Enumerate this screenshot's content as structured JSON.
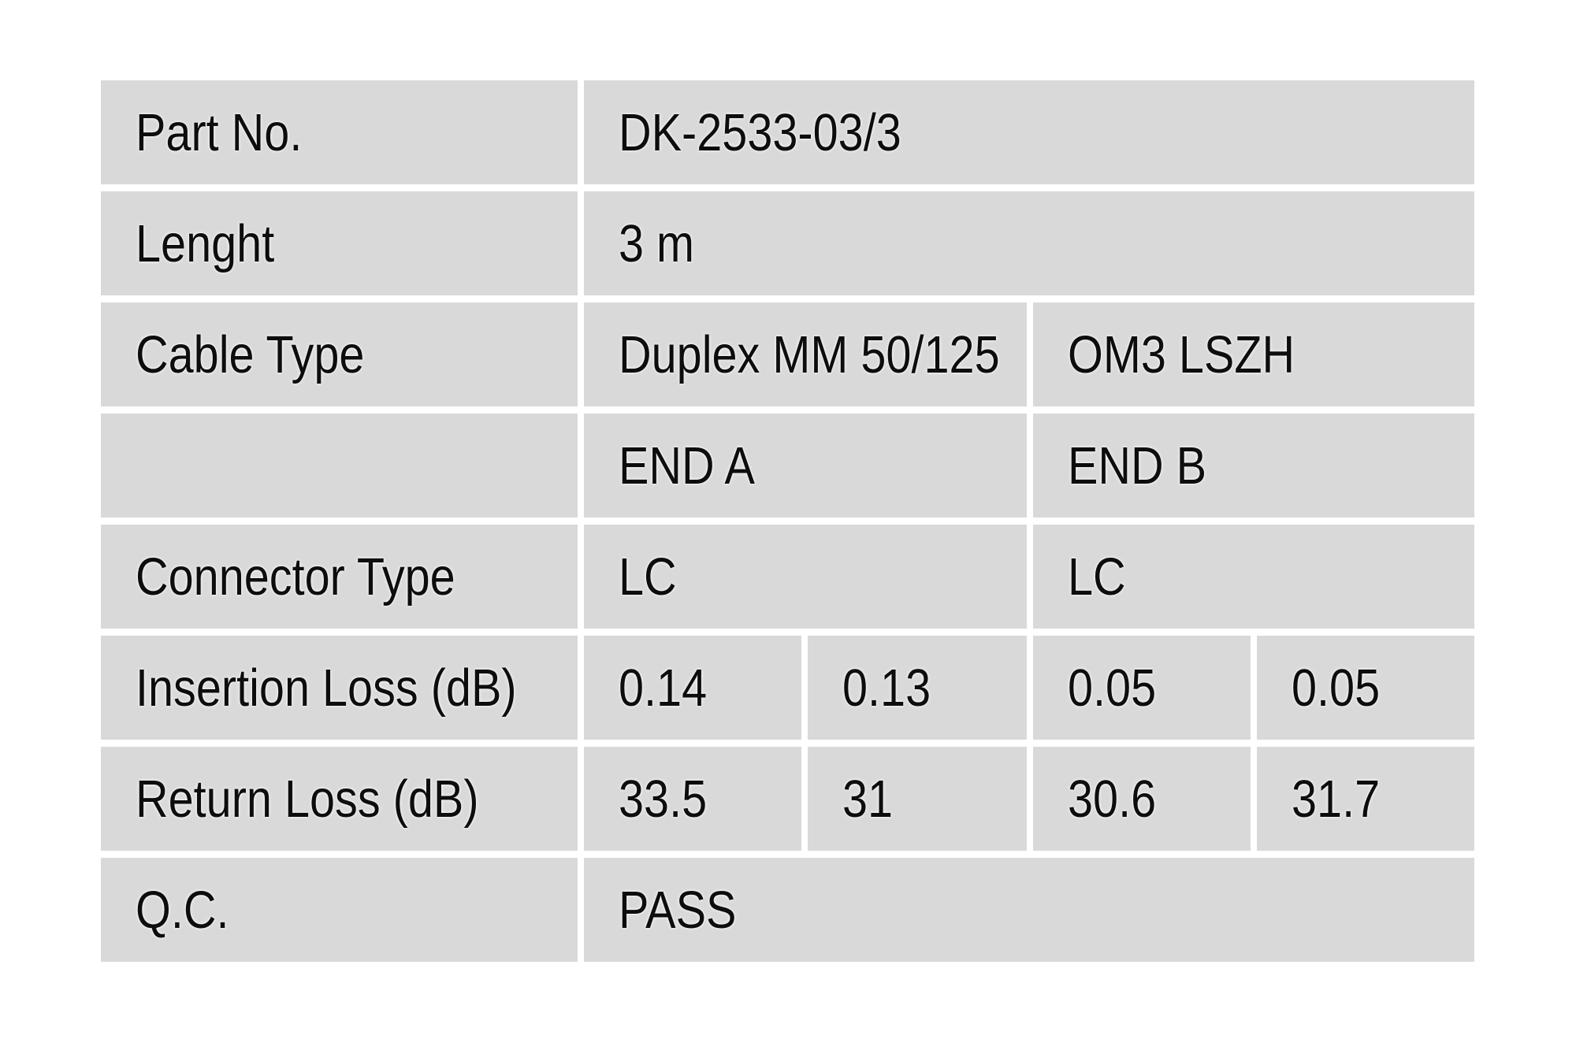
{
  "colors": {
    "cell_bg": "#d9d9d9",
    "page_bg": "#ffffff",
    "text": "#0d0d0d"
  },
  "table": {
    "rows": {
      "part_no": {
        "label": "Part No.",
        "value": "DK-2533-03/3"
      },
      "length": {
        "label": "Lenght",
        "value": "3 m"
      },
      "cable_type": {
        "label": "Cable Type",
        "end_a": "Duplex MM 50/125",
        "end_b": "OM3 LSZH"
      },
      "ends_header": {
        "label": "",
        "end_a": "END A",
        "end_b": "END B"
      },
      "connector_type": {
        "label": "Connector Type",
        "end_a": "LC",
        "end_b": "LC"
      },
      "insertion_loss": {
        "label": "Insertion Loss (dB)",
        "values": [
          "0.14",
          "0.13",
          "0.05",
          "0.05"
        ]
      },
      "return_loss": {
        "label": "Return Loss (dB)",
        "values": [
          "33.5",
          "31",
          "30.6",
          "31.7"
        ]
      },
      "qc": {
        "label": "Q.C.",
        "value": "PASS"
      }
    }
  }
}
